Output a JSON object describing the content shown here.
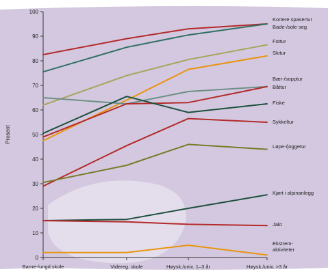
{
  "chart_data": {
    "type": "line",
    "categories": [
      "Barne-/ungd.skole",
      "Videreg. skole",
      "Høysk./univ. 1–3 år",
      "Høysk./univ. >3 år"
    ],
    "ylabel": "Prosent",
    "xlabel": "",
    "ylim": [
      0,
      100
    ],
    "yticks": [
      0,
      10,
      20,
      30,
      40,
      50,
      60,
      70,
      80,
      90,
      100
    ],
    "grid": false,
    "background_color": "#d3c8df",
    "series": [
      {
        "name": "Kortere spasertur",
        "values": [
          82.5,
          89,
          93,
          95
        ],
        "color": "#b42a2a"
      },
      {
        "name": "Bade-/sole seg",
        "values": [
          75.5,
          85.5,
          90.5,
          95
        ],
        "color": "#2f6f64"
      },
      {
        "name": "Fottur",
        "values": [
          62,
          74,
          80.5,
          86.5
        ],
        "color": "#a7a45c"
      },
      {
        "name": "Skitur",
        "values": [
          47.5,
          64,
          76.5,
          82
        ],
        "color": "#e8940e"
      },
      {
        "name": "Bær-/sopptur",
        "values": [
          65,
          62.5,
          67.5,
          69.5
        ],
        "color": "#6d8f86"
      },
      {
        "name": "Båttur",
        "values": [
          49,
          62.5,
          63,
          69.5
        ],
        "color": "#b42a2a"
      },
      {
        "name": "Fiske",
        "values": [
          50.5,
          65.5,
          59,
          62.5
        ],
        "color": "#1c4f3c"
      },
      {
        "name": "Sykkeltur",
        "values": [
          29,
          45.5,
          56.5,
          55
        ],
        "color": "#b42a2a"
      },
      {
        "name": "Løpe-/joggetur",
        "values": [
          30.5,
          37.5,
          46,
          44
        ],
        "color": "#7a7a2a"
      },
      {
        "name": "Kjørt i alpinanlegg",
        "values": [
          15,
          15.5,
          20,
          25.5
        ],
        "color": "#1c4f3c"
      },
      {
        "name": "Jakt",
        "values": [
          15,
          14.5,
          13.5,
          13
        ],
        "color": "#b42a2a"
      },
      {
        "name": "Ekstrem-\naktiviteter",
        "values": [
          2,
          2,
          5,
          1
        ],
        "color": "#e8940e"
      }
    ]
  }
}
